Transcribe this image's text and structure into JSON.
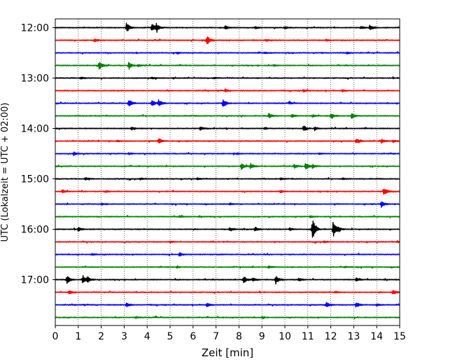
{
  "chart_data": {
    "type": "line",
    "title": "",
    "xlabel": "Zeit  [min]",
    "ylabel": "UTC (Lokalzeit = UTC + 02:00)",
    "xlim": [
      0,
      15
    ],
    "x_ticks": [
      "0",
      "1",
      "2",
      "3",
      "4",
      "5",
      "6",
      "7",
      "8",
      "9",
      "10",
      "11",
      "12",
      "13",
      "14",
      "15"
    ],
    "y_ticks": [
      {
        "label": "12:00",
        "trace": 0
      },
      {
        "label": "13:00",
        "trace": 4
      },
      {
        "label": "14:00",
        "trace": 8
      },
      {
        "label": "15:00",
        "trace": 12
      },
      {
        "label": "16:00",
        "trace": 16
      },
      {
        "label": "17:00",
        "trace": 20
      }
    ],
    "trace_interval_min": 15,
    "start_utc": "12:00",
    "grid": {
      "vertical": true,
      "style": "dotted"
    },
    "series_colors": [
      "#000000",
      "#ff0000",
      "#0000ff",
      "#008000"
    ],
    "traces": [
      {
        "start": "12:00",
        "events": [
          [
            3.1,
            1.8
          ],
          [
            4.2,
            1.5
          ],
          [
            4.4,
            1.2
          ],
          [
            7.4,
            0.6
          ],
          [
            8.7,
            0.4
          ],
          [
            10.0,
            0.4
          ],
          [
            13.7,
            1.1
          ],
          [
            13.3,
            0.5
          ]
        ]
      },
      {
        "start": "12:15",
        "events": [
          [
            1.7,
            0.5
          ],
          [
            6.6,
            1.8
          ],
          [
            9.2,
            0.3
          ],
          [
            11.8,
            0.3
          ]
        ]
      },
      {
        "start": "12:30",
        "events": [
          [
            5.3,
            0.3
          ],
          [
            9.1,
            0.3
          ],
          [
            12.7,
            0.3
          ]
        ]
      },
      {
        "start": "12:45",
        "events": [
          [
            1.9,
            1.6
          ],
          [
            3.2,
            1.3
          ],
          [
            3.6,
            0.4
          ],
          [
            9.5,
            0.3
          ]
        ]
      },
      {
        "start": "13:00",
        "events": [
          [
            1.1,
            0.3
          ],
          [
            4.2,
            0.3
          ],
          [
            6.9,
            0.3
          ]
        ]
      },
      {
        "start": "13:15",
        "events": [
          [
            7.4,
            0.5
          ],
          [
            10.8,
            0.4
          ],
          [
            12.5,
            0.3
          ]
        ]
      },
      {
        "start": "13:30",
        "events": [
          [
            3.2,
            1.4
          ],
          [
            4.2,
            1.2
          ],
          [
            4.5,
            1.3
          ],
          [
            7.3,
            1.6
          ],
          [
            10.2,
            0.3
          ]
        ]
      },
      {
        "start": "13:45",
        "events": [
          [
            9.3,
            1.0
          ],
          [
            10.3,
            0.6
          ],
          [
            11.2,
            0.5
          ],
          [
            12.0,
            0.9
          ],
          [
            12.9,
            1.0
          ]
        ]
      },
      {
        "start": "14:00",
        "events": [
          [
            3.3,
            0.5
          ],
          [
            6.3,
            0.6
          ],
          [
            9.1,
            0.3
          ],
          [
            10.8,
            1.1
          ],
          [
            11.3,
            0.6
          ]
        ]
      },
      {
        "start": "14:15",
        "events": [
          [
            4.5,
            1.0
          ],
          [
            2.7,
            0.3
          ],
          [
            13.1,
            0.8
          ],
          [
            14.2,
            0.7
          ],
          [
            14.7,
            0.4
          ]
        ]
      },
      {
        "start": "14:30",
        "events": [
          [
            0.8,
            0.7
          ],
          [
            3.2,
            0.3
          ],
          [
            7.9,
            0.3
          ],
          [
            11.5,
            0.3
          ]
        ]
      },
      {
        "start": "14:45",
        "events": [
          [
            8.1,
            1.1
          ],
          [
            8.5,
            1.0
          ],
          [
            10.4,
            0.7
          ],
          [
            10.9,
            1.2
          ],
          [
            11.2,
            0.6
          ]
        ]
      },
      {
        "start": "15:00",
        "events": [
          [
            1.3,
            0.5
          ],
          [
            3.7,
            0.3
          ],
          [
            6.2,
            0.3
          ],
          [
            9.8,
            0.3
          ],
          [
            12.5,
            0.3
          ]
        ]
      },
      {
        "start": "15:15",
        "events": [
          [
            0.3,
            0.5
          ],
          [
            2.2,
            0.3
          ],
          [
            9.8,
            0.5
          ],
          [
            14.3,
            1.5
          ]
        ]
      },
      {
        "start": "15:30",
        "events": [
          [
            2.0,
            0.3
          ],
          [
            7.6,
            0.4
          ],
          [
            14.2,
            1.1
          ]
        ]
      },
      {
        "start": "15:45",
        "events": [
          [
            5.4,
            0.3
          ],
          [
            11.1,
            0.3
          ]
        ]
      },
      {
        "start": "16:00",
        "events": [
          [
            1.0,
            0.8
          ],
          [
            7.6,
            0.5
          ],
          [
            8.7,
            0.9
          ],
          [
            10.2,
            0.5
          ],
          [
            11.2,
            3.8
          ],
          [
            12.1,
            2.6
          ],
          [
            12.3,
            0.8
          ]
        ]
      },
      {
        "start": "16:15",
        "events": [
          [
            5.0,
            0.3
          ],
          [
            11.7,
            0.3
          ],
          [
            14.9,
            0.3
          ]
        ]
      },
      {
        "start": "16:30",
        "events": [
          [
            5.4,
            0.6
          ],
          [
            1.6,
            0.3
          ]
        ]
      },
      {
        "start": "16:45",
        "events": [
          [
            5.3,
            0.3
          ],
          [
            9.3,
            0.4
          ],
          [
            12.6,
            0.3
          ]
        ]
      },
      {
        "start": "17:00",
        "events": [
          [
            0.5,
            1.6
          ],
          [
            1.2,
            1.7
          ],
          [
            1.4,
            1.0
          ],
          [
            8.2,
            1.2
          ],
          [
            8.6,
            0.6
          ],
          [
            9.6,
            1.5
          ],
          [
            10.6,
            0.6
          ],
          [
            13.1,
            0.6
          ]
        ]
      },
      {
        "start": "17:15",
        "events": [
          [
            0.6,
            0.6
          ],
          [
            12.2,
            0.3
          ],
          [
            14.7,
            0.8
          ]
        ]
      },
      {
        "start": "17:30",
        "events": [
          [
            3.1,
            0.8
          ],
          [
            6.6,
            0.6
          ],
          [
            11.8,
            0.9
          ],
          [
            13.1,
            1.0
          ],
          [
            14.0,
            0.4
          ]
        ]
      },
      {
        "start": "17:45",
        "events": [
          [
            3.5,
            0.3
          ],
          [
            9.0,
            0.3
          ]
        ]
      }
    ]
  }
}
